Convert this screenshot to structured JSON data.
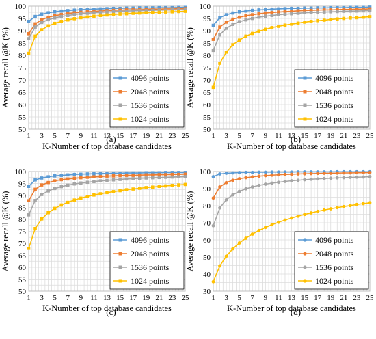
{
  "chart_data": [
    {
      "type": "line",
      "caption": "(a)",
      "xlabel": "K-Number of top database candidates",
      "ylabel": "Average recall @K (%)",
      "xlim": [
        1,
        25
      ],
      "ylim": [
        50,
        100
      ],
      "yticks": [
        50,
        55,
        60,
        65,
        70,
        75,
        80,
        85,
        90,
        95,
        100
      ],
      "xticks": [
        1,
        3,
        5,
        7,
        9,
        11,
        13,
        15,
        17,
        19,
        21,
        23,
        25
      ],
      "grid": true,
      "legend": "bottom-right",
      "x": [
        1,
        2,
        3,
        4,
        5,
        6,
        7,
        8,
        9,
        10,
        11,
        12,
        13,
        14,
        15,
        16,
        17,
        18,
        19,
        20,
        21,
        22,
        23,
        24,
        25
      ],
      "series": [
        {
          "name": "4096 points",
          "color": "#5B9BD5",
          "marker": "square",
          "values": [
            93.8,
            95.8,
            96.7,
            97.3,
            97.7,
            98.0,
            98.2,
            98.4,
            98.6,
            98.7,
            98.8,
            98.9,
            99.0,
            99.1,
            99.1,
            99.2,
            99.2,
            99.3,
            99.3,
            99.3,
            99.4,
            99.4,
            99.4,
            99.5,
            99.5
          ]
        },
        {
          "name": "2048 points",
          "color": "#ED7D31",
          "marker": "square",
          "values": [
            88.8,
            92.8,
            94.5,
            95.5,
            96.1,
            96.6,
            97.0,
            97.3,
            97.5,
            97.7,
            97.9,
            98.0,
            98.2,
            98.3,
            98.4,
            98.5,
            98.6,
            98.6,
            98.7,
            98.8,
            98.8,
            98.9,
            98.9,
            99.0,
            99.0
          ]
        },
        {
          "name": "1536 points",
          "color": "#A5A5A5",
          "marker": "square",
          "values": [
            86.8,
            91.5,
            93.4,
            94.5,
            95.2,
            95.8,
            96.2,
            96.6,
            96.9,
            97.1,
            97.3,
            97.5,
            97.6,
            97.8,
            97.9,
            98.0,
            98.1,
            98.2,
            98.2,
            98.3,
            98.4,
            98.4,
            98.5,
            98.5,
            98.6
          ]
        },
        {
          "name": "1024 points",
          "color": "#FFC000",
          "marker": "square",
          "values": [
            80.8,
            87.8,
            90.4,
            92.0,
            93.0,
            93.8,
            94.4,
            94.9,
            95.3,
            95.6,
            95.9,
            96.2,
            96.4,
            96.6,
            96.8,
            96.9,
            97.1,
            97.2,
            97.3,
            97.4,
            97.5,
            97.6,
            97.7,
            97.8,
            97.9
          ]
        }
      ]
    },
    {
      "type": "line",
      "caption": "(b)",
      "xlabel": "K-Number of top database candidates",
      "ylabel": "Average recall @K (%)",
      "xlim": [
        1,
        25
      ],
      "ylim": [
        50,
        100
      ],
      "yticks": [
        50,
        55,
        60,
        65,
        70,
        75,
        80,
        85,
        90,
        95,
        100
      ],
      "xticks": [
        1,
        3,
        5,
        7,
        9,
        11,
        13,
        15,
        17,
        19,
        21,
        23,
        25
      ],
      "grid": true,
      "legend": "bottom-right",
      "x": [
        1,
        2,
        3,
        4,
        5,
        6,
        7,
        8,
        9,
        10,
        11,
        12,
        13,
        14,
        15,
        16,
        17,
        18,
        19,
        20,
        21,
        22,
        23,
        24,
        25
      ],
      "series": [
        {
          "name": "4096 points",
          "color": "#5B9BD5",
          "marker": "square",
          "values": [
            92.2,
            95.3,
            96.5,
            97.2,
            97.7,
            98.0,
            98.3,
            98.5,
            98.6,
            98.8,
            98.9,
            99.0,
            99.1,
            99.1,
            99.2,
            99.2,
            99.3,
            99.3,
            99.4,
            99.4,
            99.4,
            99.5,
            99.5,
            99.5,
            99.6
          ]
        },
        {
          "name": "2048 points",
          "color": "#ED7D31",
          "marker": "square",
          "values": [
            86.5,
            91.5,
            93.5,
            94.7,
            95.5,
            96.1,
            96.5,
            96.9,
            97.2,
            97.4,
            97.6,
            97.8,
            97.9,
            98.1,
            98.2,
            98.3,
            98.4,
            98.5,
            98.5,
            98.6,
            98.7,
            98.7,
            98.8,
            98.8,
            98.9
          ]
        },
        {
          "name": "1536 points",
          "color": "#A5A5A5",
          "marker": "square",
          "values": [
            82.0,
            88.3,
            91.0,
            92.6,
            93.7,
            94.4,
            95.0,
            95.5,
            95.9,
            96.2,
            96.5,
            96.7,
            96.9,
            97.1,
            97.3,
            97.4,
            97.5,
            97.6,
            97.7,
            97.8,
            97.9,
            98.0,
            98.0,
            98.1,
            98.2
          ]
        },
        {
          "name": "1024 points",
          "color": "#FFC000",
          "marker": "square",
          "values": [
            67.0,
            76.8,
            81.3,
            84.3,
            86.2,
            87.8,
            88.9,
            89.8,
            90.6,
            91.3,
            91.8,
            92.3,
            92.7,
            93.1,
            93.5,
            93.8,
            94.1,
            94.3,
            94.6,
            94.8,
            95.0,
            95.2,
            95.3,
            95.5,
            95.7
          ]
        }
      ]
    },
    {
      "type": "line",
      "caption": "(c)",
      "xlabel": "K-Number of top database candidates",
      "ylabel": "Average recall @K (%)",
      "xlim": [
        1,
        25
      ],
      "ylim": [
        50,
        100
      ],
      "yticks": [
        50,
        55,
        60,
        65,
        70,
        75,
        80,
        85,
        90,
        95,
        100
      ],
      "xticks": [
        1,
        3,
        5,
        7,
        9,
        11,
        13,
        15,
        17,
        19,
        21,
        23,
        25
      ],
      "grid": true,
      "legend": "bottom-right",
      "x": [
        1,
        2,
        3,
        4,
        5,
        6,
        7,
        8,
        9,
        10,
        11,
        12,
        13,
        14,
        15,
        16,
        17,
        18,
        19,
        20,
        21,
        22,
        23,
        24,
        25
      ],
      "series": [
        {
          "name": "4096 points",
          "color": "#5B9BD5",
          "marker": "square",
          "values": [
            93.8,
            96.5,
            97.3,
            97.8,
            98.2,
            98.4,
            98.6,
            98.8,
            98.9,
            99.0,
            99.1,
            99.2,
            99.2,
            99.3,
            99.3,
            99.4,
            99.4,
            99.4,
            99.5,
            99.5,
            99.5,
            99.6,
            99.6,
            99.6,
            99.6
          ]
        },
        {
          "name": "2048 points",
          "color": "#ED7D31",
          "marker": "square",
          "values": [
            87.8,
            92.6,
            94.4,
            95.4,
            96.1,
            96.6,
            96.9,
            97.2,
            97.4,
            97.6,
            97.8,
            97.9,
            98.1,
            98.2,
            98.3,
            98.4,
            98.4,
            98.5,
            98.6,
            98.6,
            98.7,
            98.7,
            98.8,
            98.8,
            98.9
          ]
        },
        {
          "name": "1536 points",
          "color": "#A5A5A5",
          "marker": "square",
          "values": [
            81.9,
            87.9,
            90.4,
            91.9,
            92.9,
            93.7,
            94.3,
            94.8,
            95.2,
            95.5,
            95.8,
            96.1,
            96.3,
            96.5,
            96.7,
            96.9,
            97.0,
            97.2,
            97.3,
            97.4,
            97.5,
            97.6,
            97.7,
            97.8,
            97.9
          ]
        },
        {
          "name": "1024 points",
          "color": "#FFC000",
          "marker": "square",
          "values": [
            67.9,
            76.2,
            80.2,
            82.8,
            84.6,
            86.0,
            87.1,
            88.1,
            88.9,
            89.6,
            90.2,
            90.7,
            91.2,
            91.6,
            92.0,
            92.4,
            92.7,
            93.0,
            93.3,
            93.5,
            93.8,
            94.0,
            94.2,
            94.4,
            94.6
          ]
        }
      ]
    },
    {
      "type": "line",
      "caption": "(d)",
      "xlabel": "K-Number of top database candidates",
      "ylabel": "Average recall @K (%)",
      "xlim": [
        1,
        25
      ],
      "ylim": [
        30,
        100
      ],
      "yticks": [
        30,
        40,
        50,
        60,
        70,
        80,
        90,
        100
      ],
      "xticks": [
        1,
        3,
        5,
        7,
        9,
        11,
        13,
        15,
        17,
        19,
        21,
        23,
        25
      ],
      "grid": true,
      "legend": "bottom-right",
      "x": [
        1,
        2,
        3,
        4,
        5,
        6,
        7,
        8,
        9,
        10,
        11,
        12,
        13,
        14,
        15,
        16,
        17,
        18,
        19,
        20,
        21,
        22,
        23,
        24,
        25
      ],
      "series": [
        {
          "name": "4096 points",
          "color": "#5B9BD5",
          "marker": "circle",
          "values": [
            97.0,
            98.6,
            99.0,
            99.2,
            99.4,
            99.5,
            99.5,
            99.6,
            99.6,
            99.7,
            99.7,
            99.7,
            99.7,
            99.8,
            99.8,
            99.8,
            99.8,
            99.8,
            99.8,
            99.9,
            99.9,
            99.9,
            99.9,
            99.9,
            99.9
          ]
        },
        {
          "name": "2048 points",
          "color": "#ED7D31",
          "marker": "circle",
          "values": [
            84.5,
            91.0,
            93.5,
            94.9,
            95.8,
            96.4,
            96.9,
            97.3,
            97.6,
            97.9,
            98.1,
            98.3,
            98.4,
            98.6,
            98.7,
            98.8,
            98.9,
            99.0,
            99.0,
            99.1,
            99.2,
            99.2,
            99.3,
            99.3,
            99.4
          ]
        },
        {
          "name": "1536 points",
          "color": "#A5A5A5",
          "marker": "circle",
          "values": [
            68.3,
            78.7,
            83.5,
            86.4,
            88.4,
            89.9,
            91.0,
            91.9,
            92.6,
            93.2,
            93.7,
            94.2,
            94.6,
            94.9,
            95.2,
            95.5,
            95.7,
            95.9,
            96.1,
            96.3,
            96.4,
            96.6,
            96.7,
            96.8,
            97.0
          ]
        },
        {
          "name": "1024 points",
          "color": "#FFC000",
          "marker": "circle",
          "values": [
            35.5,
            44.8,
            50.5,
            54.8,
            58.2,
            61.0,
            63.4,
            65.5,
            67.3,
            68.9,
            70.3,
            71.6,
            72.8,
            73.9,
            74.9,
            75.8,
            76.7,
            77.5,
            78.2,
            78.9,
            79.5,
            80.1,
            80.7,
            81.2,
            81.7
          ]
        }
      ]
    }
  ]
}
